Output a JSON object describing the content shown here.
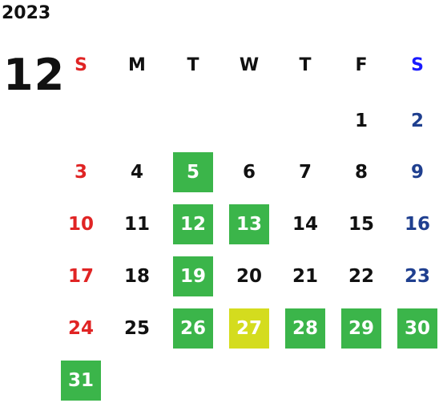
{
  "year": "2023",
  "month": "12",
  "weekdays": [
    "S",
    "M",
    "T",
    "W",
    "T",
    "F",
    "S"
  ],
  "colors": {
    "sunday": "#e02424",
    "saturday": "#1f3f8f",
    "saturday_header": "#1a1aff",
    "highlight_green": "#3bb54a",
    "highlight_yellow": "#d4dc1e"
  },
  "weeks": [
    [
      null,
      null,
      null,
      null,
      null,
      {
        "day": "1"
      },
      {
        "day": "2"
      }
    ],
    [
      {
        "day": "3"
      },
      {
        "day": "4"
      },
      {
        "day": "5",
        "mark": "green"
      },
      {
        "day": "6"
      },
      {
        "day": "7"
      },
      {
        "day": "8"
      },
      {
        "day": "9"
      }
    ],
    [
      {
        "day": "10"
      },
      {
        "day": "11"
      },
      {
        "day": "12",
        "mark": "green"
      },
      {
        "day": "13",
        "mark": "green"
      },
      {
        "day": "14"
      },
      {
        "day": "15"
      },
      {
        "day": "16"
      }
    ],
    [
      {
        "day": "17"
      },
      {
        "day": "18"
      },
      {
        "day": "19",
        "mark": "green"
      },
      {
        "day": "20"
      },
      {
        "day": "21"
      },
      {
        "day": "22"
      },
      {
        "day": "23"
      }
    ],
    [
      {
        "day": "24"
      },
      {
        "day": "25"
      },
      {
        "day": "26",
        "mark": "green"
      },
      {
        "day": "27",
        "mark": "yellow"
      },
      {
        "day": "28",
        "mark": "green"
      },
      {
        "day": "29",
        "mark": "green"
      },
      {
        "day": "30",
        "mark": "green"
      }
    ],
    [
      {
        "day": "31",
        "mark": "green"
      },
      null,
      null,
      null,
      null,
      null,
      null
    ]
  ]
}
